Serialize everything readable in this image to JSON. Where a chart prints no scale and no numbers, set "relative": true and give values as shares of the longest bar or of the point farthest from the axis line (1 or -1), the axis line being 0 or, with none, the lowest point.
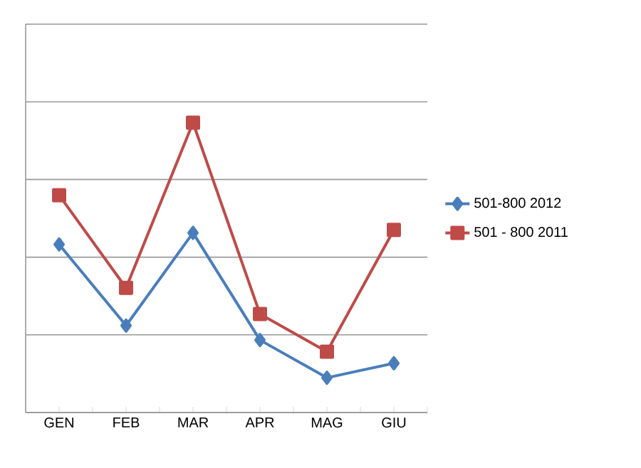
{
  "chart_data": {
    "type": "line",
    "relative": true,
    "categories": [
      "GEN",
      "FEB",
      "MAR",
      "APR",
      "MAG",
      "GIU"
    ],
    "series": [
      {
        "name": "501-800 2012",
        "color": "#4a7ebb",
        "marker": "diamond",
        "values": [
          0.58,
          0.3,
          0.62,
          0.25,
          0.12,
          0.17
        ]
      },
      {
        "name": "501 - 800 2011",
        "color": "#be4b48",
        "marker": "square",
        "values": [
          0.75,
          0.43,
          1,
          0.34,
          0.21,
          0.63
        ]
      }
    ],
    "grid": "y",
    "legend": "right",
    "line_style": "solid"
  }
}
